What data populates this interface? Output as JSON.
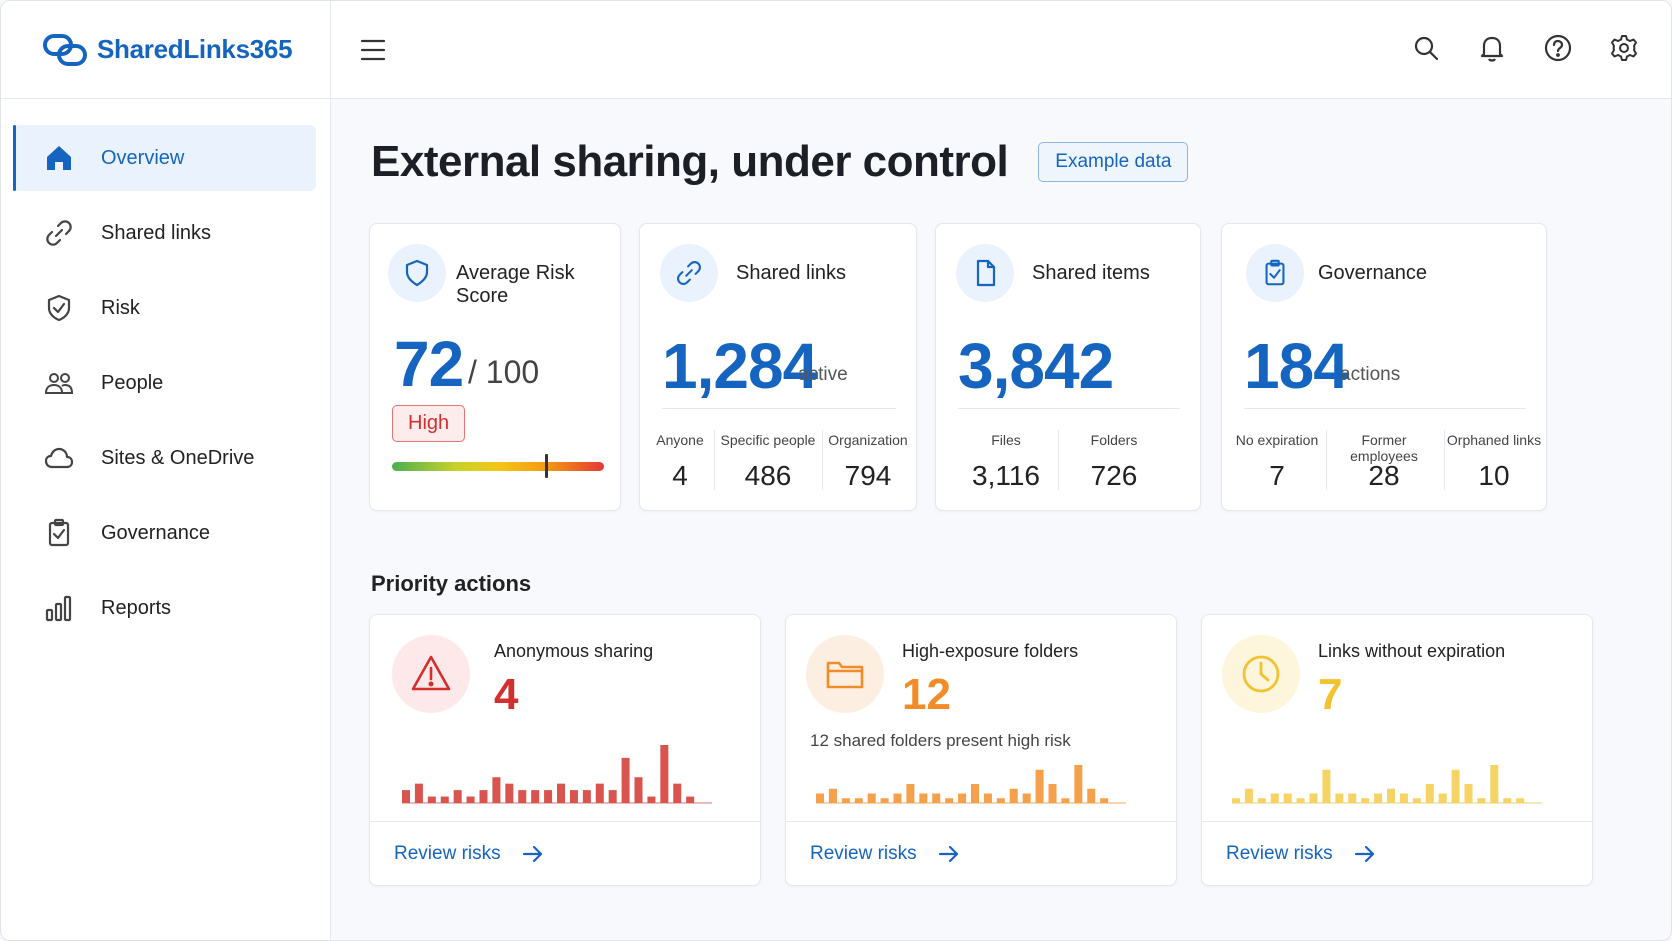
{
  "app": {
    "name": "SharedLinks365"
  },
  "sidebar": {
    "items": [
      {
        "label": "Overview",
        "icon": "home-icon",
        "active": true
      },
      {
        "label": "Shared links",
        "icon": "link-icon"
      },
      {
        "label": "Risk",
        "icon": "shield-check-icon"
      },
      {
        "label": "People",
        "icon": "people-icon"
      },
      {
        "label": "Sites & OneDrive",
        "icon": "cloud-icon"
      },
      {
        "label": "Governance",
        "icon": "clipboard-check-icon"
      },
      {
        "label": "Reports",
        "icon": "bar-chart-icon"
      }
    ]
  },
  "topbar": {
    "icons": [
      "menu-icon",
      "search-icon",
      "bell-icon",
      "help-icon",
      "settings-icon"
    ]
  },
  "page": {
    "title": "External sharing, under control",
    "badge": "Example data"
  },
  "colors": {
    "accent": "#1565c0",
    "red": "#d32f2f",
    "orange": "#f28c28",
    "yellow": "#f2c230"
  },
  "cards": {
    "risk": {
      "label": "Average Risk Score",
      "value": "72",
      "suffix": "/ 100",
      "level": "High",
      "score_fraction": 0.72
    },
    "links": {
      "label": "Shared links",
      "value": "1,284",
      "unit": "active",
      "breakdown": [
        {
          "label": "Anyone",
          "value": "4"
        },
        {
          "label": "Specific people",
          "value": "486"
        },
        {
          "label": "Organization",
          "value": "794"
        }
      ]
    },
    "items": {
      "label": "Shared items",
      "value": "3,842",
      "breakdown": [
        {
          "label": "Files",
          "value": "3,116"
        },
        {
          "label": "Folders",
          "value": "726"
        }
      ]
    },
    "governance": {
      "label": "Governance",
      "value": "184",
      "unit": "actions",
      "breakdown": [
        {
          "label": "No expiration",
          "value": "7"
        },
        {
          "label": "Former employees",
          "value": "28"
        },
        {
          "label": "Orphaned links",
          "value": "10"
        }
      ]
    }
  },
  "priority": {
    "title": "Priority actions",
    "items": [
      {
        "label": "Anonymous sharing",
        "value": "4",
        "desc": "",
        "action": "Review risks",
        "bars": [
          2,
          3,
          1,
          1,
          2,
          1,
          2,
          4,
          3,
          2,
          2,
          2,
          3,
          2,
          2,
          3,
          2,
          7,
          4,
          1,
          9,
          3,
          1,
          0
        ]
      },
      {
        "label": "High-exposure folders",
        "value": "12",
        "desc": "12 shared folders present high risk",
        "action": "Review risks",
        "bars": [
          2,
          3,
          1,
          1,
          2,
          1,
          2,
          4,
          2,
          2,
          1,
          2,
          4,
          2,
          1,
          3,
          2,
          7,
          4,
          1,
          8,
          3,
          1,
          0
        ]
      },
      {
        "label": "Links without expiration",
        "value": "7",
        "desc": "",
        "action": "Review risks",
        "bars": [
          1,
          3,
          1,
          2,
          2,
          1,
          2,
          7,
          2,
          2,
          1,
          2,
          3,
          2,
          1,
          4,
          2,
          7,
          4,
          1,
          8,
          1,
          1,
          0
        ]
      }
    ]
  }
}
